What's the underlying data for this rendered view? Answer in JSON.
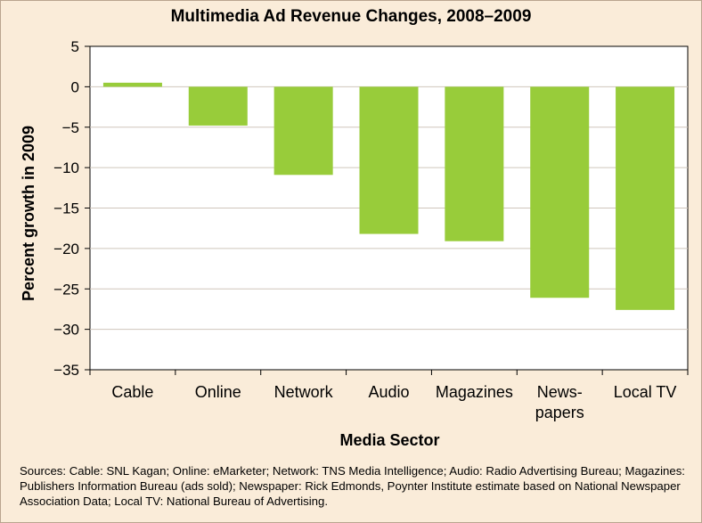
{
  "title": "Multimedia Ad Revenue Changes, 2008–2009",
  "sources": "Sources: Cable: SNL Kagan; Online: eMarketer; Network: TNS Media Intelligence; Audio: Radio Advertising Bureau; Magazines: Publishers Information Bureau (ads sold); Newspaper: Rick Edmonds, Poynter Institute estimate based on National Newspaper Association Data; Local TV: National Bureau of Advertising.",
  "colors": {
    "bar": "#98cc3a",
    "background": "#faecd9",
    "plot_background": "#ffffff",
    "grid": "#cfc6bb"
  },
  "chart_data": {
    "type": "bar",
    "title": "Multimedia Ad Revenue Changes, 2008–2009",
    "xlabel": "Media Sector",
    "ylabel": "Percent growth in 2009",
    "categories": [
      [
        "Cable"
      ],
      [
        "Online"
      ],
      [
        "Network"
      ],
      [
        "Audio"
      ],
      [
        "Magazines"
      ],
      [
        "News-",
        "papers"
      ],
      [
        "Local TV"
      ]
    ],
    "values": [
      0.5,
      -4.8,
      -10.9,
      -18.2,
      -19.1,
      -26.1,
      -27.6
    ],
    "ylim": [
      -35,
      5
    ],
    "yticks": [
      5,
      0,
      -5,
      -10,
      -15,
      -20,
      -25,
      -30,
      -35
    ],
    "ytick_labels": [
      "5",
      "0",
      "−5",
      "−10",
      "−15",
      "−20",
      "−25",
      "−30",
      "−35"
    ],
    "grid": true,
    "legend": "none"
  }
}
